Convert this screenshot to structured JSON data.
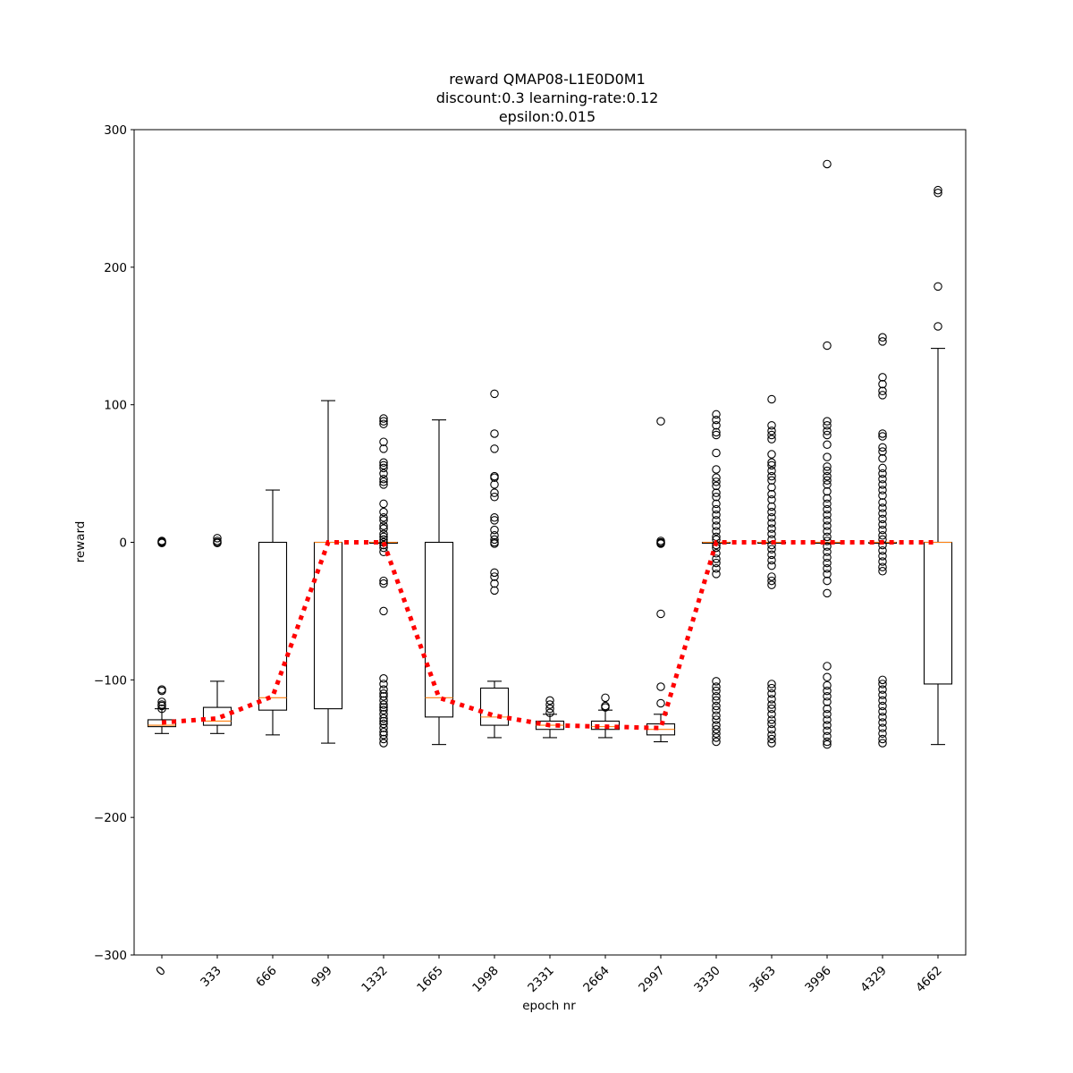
{
  "chart_data": {
    "type": "box",
    "title_lines": [
      "reward QMAP08-L1E0D0M1",
      "discount:0.3 learning-rate:0.12",
      "epsilon:0.015"
    ],
    "xlabel": "epoch nr",
    "ylabel": "reward",
    "ylim": [
      -300,
      300
    ],
    "yticks": [
      -300,
      -200,
      -100,
      0,
      100,
      200,
      300
    ],
    "ytick_labels": [
      "−300",
      "−200",
      "−100",
      "0",
      "100",
      "200",
      "300"
    ],
    "categories": [
      "0",
      "333",
      "666",
      "999",
      "1332",
      "1665",
      "1998",
      "2331",
      "2664",
      "2997",
      "3330",
      "3663",
      "3996",
      "4329",
      "4662"
    ],
    "boxes": [
      {
        "q1": -134,
        "median": -133,
        "q3": -129,
        "whisker_low": -139,
        "whisker_high": -121,
        "outliers": [
          1,
          0.5,
          0,
          -0.5,
          -107,
          -108,
          -116,
          -118,
          -119,
          -121
        ]
      },
      {
        "q1": -133,
        "median": -130,
        "q3": -120,
        "whisker_low": -139,
        "whisker_high": -101,
        "outliers": [
          3,
          1,
          0,
          -0.5
        ]
      },
      {
        "q1": -122,
        "median": -113,
        "q3": 0,
        "whisker_low": -140,
        "whisker_high": 38,
        "outliers": []
      },
      {
        "q1": -121,
        "median": 0,
        "q3": 0,
        "whisker_low": -146,
        "whisker_high": 103,
        "outliers": []
      },
      {
        "q1": 0,
        "median": 0,
        "q3": 0,
        "whisker_low": 0,
        "whisker_high": 0,
        "outliers": [
          90,
          88,
          86,
          73,
          68,
          58,
          56,
          54,
          50,
          46,
          44,
          42,
          28,
          22,
          18,
          16,
          12,
          10,
          6,
          4,
          2,
          0,
          -2,
          -4,
          -7,
          -28,
          -30,
          -50,
          -99,
          -103,
          -107,
          -110,
          -112,
          -115,
          -118,
          -120,
          -122,
          -125,
          -128,
          -130,
          -132,
          -135,
          -138,
          -140,
          -143,
          -146
        ]
      },
      {
        "q1": -127,
        "median": -113,
        "q3": 0,
        "whisker_low": -147,
        "whisker_high": 89,
        "outliers": []
      },
      {
        "q1": -133,
        "median": -127,
        "q3": -106,
        "whisker_low": -142,
        "whisker_high": -101,
        "outliers": [
          108,
          79,
          68,
          48,
          47,
          42,
          36,
          33,
          18,
          16,
          9,
          5,
          2,
          0,
          -1,
          -22,
          -25,
          -30,
          -35
        ]
      },
      {
        "q1": -136,
        "median": -133,
        "q3": -130,
        "whisker_low": -142,
        "whisker_high": -125,
        "outliers": [
          -115,
          -118,
          -121,
          -124
        ]
      },
      {
        "q1": -136,
        "median": -134,
        "q3": -130,
        "whisker_low": -142,
        "whisker_high": -122,
        "outliers": [
          -113,
          -119,
          -120
        ]
      },
      {
        "q1": -140,
        "median": -136,
        "q3": -132,
        "whisker_low": -145,
        "whisker_high": -125,
        "outliers": [
          88,
          1,
          0,
          -0.5,
          -1,
          -52,
          -105,
          -117
        ]
      },
      {
        "q1": 0,
        "median": 0,
        "q3": 0,
        "whisker_low": 0,
        "whisker_high": 0,
        "outliers": [
          93,
          89,
          85,
          80,
          78,
          65,
          53,
          47,
          44,
          41,
          36,
          33,
          28,
          24,
          20,
          16,
          12,
          8,
          4,
          2,
          -2,
          -4,
          -8,
          -12,
          -15,
          -19,
          -23,
          -101,
          -105,
          -108,
          -112,
          -115,
          -119,
          -122,
          -126,
          -129,
          -133,
          -136,
          -139,
          -142,
          -145
        ]
      },
      {
        "q1": 0,
        "median": 0,
        "q3": 0,
        "whisker_low": 0,
        "whisker_high": 0,
        "outliers": [
          104,
          85,
          81,
          78,
          75,
          64,
          58,
          56,
          52,
          48,
          45,
          40,
          35,
          31,
          26,
          22,
          18,
          14,
          10,
          6,
          2,
          -2,
          -5,
          -9,
          -13,
          -17,
          -25,
          -28,
          -31,
          -103,
          -106,
          -110,
          -114,
          -118,
          -121,
          -125,
          -129,
          -132,
          -136,
          -140,
          -143,
          -146
        ]
      },
      {
        "q1": 0,
        "median": 0,
        "q3": 0,
        "whisker_low": 0,
        "whisker_high": 0,
        "outliers": [
          275,
          143,
          88,
          85,
          81,
          78,
          71,
          62,
          55,
          52,
          48,
          45,
          42,
          37,
          32,
          28,
          24,
          20,
          16,
          12,
          8,
          4,
          1,
          -3,
          -7,
          -11,
          -15,
          -19,
          -23,
          -28,
          -37,
          -90,
          -98,
          -104,
          -108,
          -112,
          -116,
          -121,
          -125,
          -129,
          -133,
          -137,
          -141,
          -145,
          -147
        ]
      },
      {
        "q1": 0,
        "median": 0,
        "q3": 0,
        "whisker_low": 0,
        "whisker_high": 0,
        "outliers": [
          149,
          146,
          120,
          115,
          110,
          107,
          79,
          77,
          69,
          66,
          61,
          54,
          50,
          46,
          42,
          38,
          34,
          29,
          25,
          21,
          17,
          13,
          9,
          5,
          2,
          -2,
          -6,
          -10,
          -14,
          -18,
          -21,
          -100,
          -103,
          -107,
          -111,
          -115,
          -119,
          -123,
          -127,
          -131,
          -135,
          -139,
          -143,
          -146
        ]
      },
      {
        "q1": -103,
        "median": 0,
        "q3": 0,
        "whisker_low": -147,
        "whisker_high": 141,
        "outliers": [
          256,
          254,
          186,
          157
        ]
      }
    ],
    "mean_line": {
      "style": "dotted",
      "color": "#ff0000",
      "values": [
        -131,
        -128,
        -112,
        0,
        0,
        -113,
        -126,
        -133,
        -134,
        -135,
        0,
        0,
        0,
        0,
        0
      ]
    },
    "colors": {
      "box": "#000000",
      "median": "#ff7f0e",
      "mean_line": "#ff0000"
    }
  }
}
